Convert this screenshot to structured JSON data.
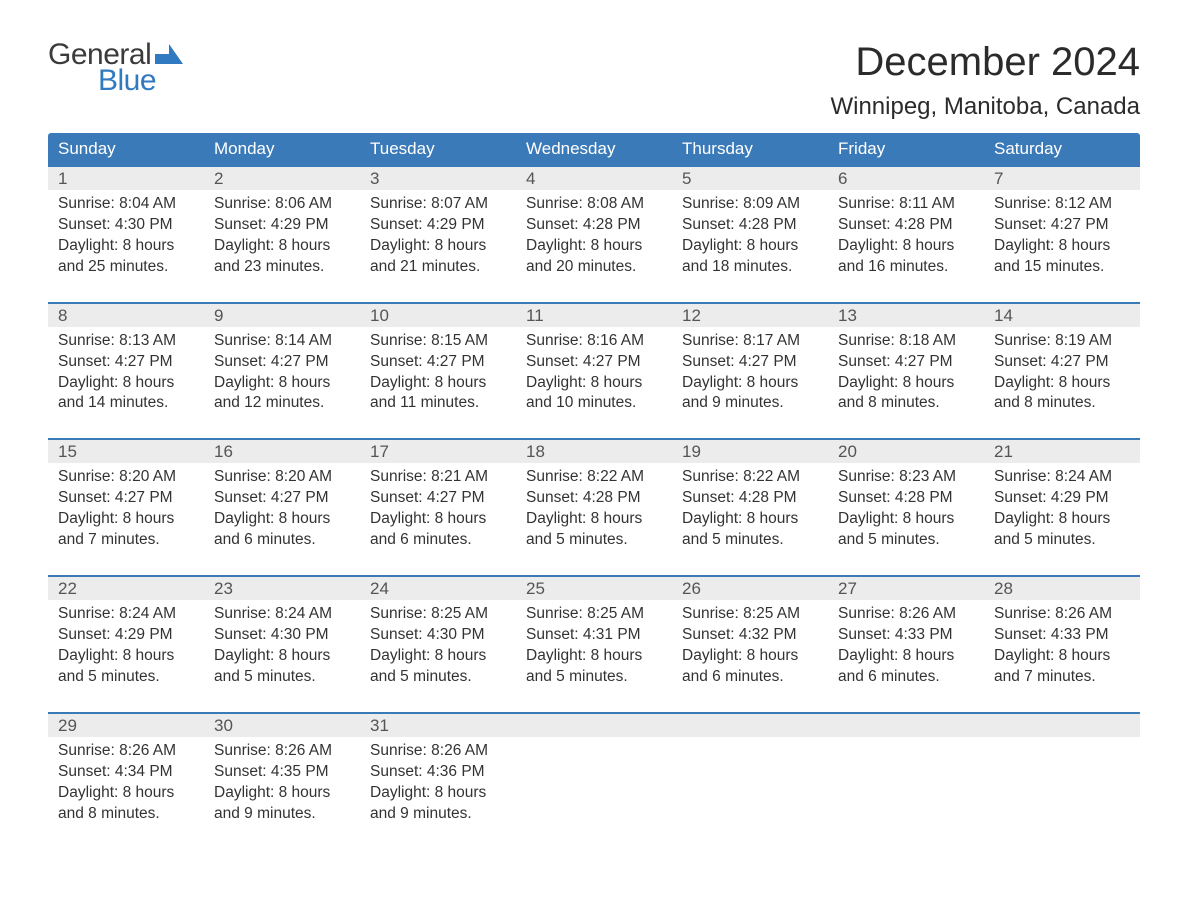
{
  "brand": {
    "text_general": "General",
    "text_blue": "Blue",
    "general_color": "#3b3b3b",
    "blue_color": "#2f7ac0",
    "flag_color": "#2f7ac0"
  },
  "title": "December 2024",
  "subtitle": "Winnipeg, Manitoba, Canada",
  "colors": {
    "header_bg": "#3b7ab8",
    "header_text": "#ffffff",
    "daynum_bg": "#ececec",
    "daynum_text": "#555555",
    "body_text": "#333333",
    "week_border": "#3b7ab8",
    "page_bg": "#ffffff"
  },
  "typography": {
    "title_fontsize": 40,
    "subtitle_fontsize": 24,
    "dow_fontsize": 17,
    "daynum_fontsize": 17,
    "body_fontsize": 15.5,
    "logo_fontsize": 30
  },
  "days_of_week": [
    "Sunday",
    "Monday",
    "Tuesday",
    "Wednesday",
    "Thursday",
    "Friday",
    "Saturday"
  ],
  "weeks": [
    [
      {
        "num": "1",
        "sunrise": "8:04 AM",
        "sunset": "4:30 PM",
        "daylight": "8 hours and 25 minutes."
      },
      {
        "num": "2",
        "sunrise": "8:06 AM",
        "sunset": "4:29 PM",
        "daylight": "8 hours and 23 minutes."
      },
      {
        "num": "3",
        "sunrise": "8:07 AM",
        "sunset": "4:29 PM",
        "daylight": "8 hours and 21 minutes."
      },
      {
        "num": "4",
        "sunrise": "8:08 AM",
        "sunset": "4:28 PM",
        "daylight": "8 hours and 20 minutes."
      },
      {
        "num": "5",
        "sunrise": "8:09 AM",
        "sunset": "4:28 PM",
        "daylight": "8 hours and 18 minutes."
      },
      {
        "num": "6",
        "sunrise": "8:11 AM",
        "sunset": "4:28 PM",
        "daylight": "8 hours and 16 minutes."
      },
      {
        "num": "7",
        "sunrise": "8:12 AM",
        "sunset": "4:27 PM",
        "daylight": "8 hours and 15 minutes."
      }
    ],
    [
      {
        "num": "8",
        "sunrise": "8:13 AM",
        "sunset": "4:27 PM",
        "daylight": "8 hours and 14 minutes."
      },
      {
        "num": "9",
        "sunrise": "8:14 AM",
        "sunset": "4:27 PM",
        "daylight": "8 hours and 12 minutes."
      },
      {
        "num": "10",
        "sunrise": "8:15 AM",
        "sunset": "4:27 PM",
        "daylight": "8 hours and 11 minutes."
      },
      {
        "num": "11",
        "sunrise": "8:16 AM",
        "sunset": "4:27 PM",
        "daylight": "8 hours and 10 minutes."
      },
      {
        "num": "12",
        "sunrise": "8:17 AM",
        "sunset": "4:27 PM",
        "daylight": "8 hours and 9 minutes."
      },
      {
        "num": "13",
        "sunrise": "8:18 AM",
        "sunset": "4:27 PM",
        "daylight": "8 hours and 8 minutes."
      },
      {
        "num": "14",
        "sunrise": "8:19 AM",
        "sunset": "4:27 PM",
        "daylight": "8 hours and 8 minutes."
      }
    ],
    [
      {
        "num": "15",
        "sunrise": "8:20 AM",
        "sunset": "4:27 PM",
        "daylight": "8 hours and 7 minutes."
      },
      {
        "num": "16",
        "sunrise": "8:20 AM",
        "sunset": "4:27 PM",
        "daylight": "8 hours and 6 minutes."
      },
      {
        "num": "17",
        "sunrise": "8:21 AM",
        "sunset": "4:27 PM",
        "daylight": "8 hours and 6 minutes."
      },
      {
        "num": "18",
        "sunrise": "8:22 AM",
        "sunset": "4:28 PM",
        "daylight": "8 hours and 5 minutes."
      },
      {
        "num": "19",
        "sunrise": "8:22 AM",
        "sunset": "4:28 PM",
        "daylight": "8 hours and 5 minutes."
      },
      {
        "num": "20",
        "sunrise": "8:23 AM",
        "sunset": "4:28 PM",
        "daylight": "8 hours and 5 minutes."
      },
      {
        "num": "21",
        "sunrise": "8:24 AM",
        "sunset": "4:29 PM",
        "daylight": "8 hours and 5 minutes."
      }
    ],
    [
      {
        "num": "22",
        "sunrise": "8:24 AM",
        "sunset": "4:29 PM",
        "daylight": "8 hours and 5 minutes."
      },
      {
        "num": "23",
        "sunrise": "8:24 AM",
        "sunset": "4:30 PM",
        "daylight": "8 hours and 5 minutes."
      },
      {
        "num": "24",
        "sunrise": "8:25 AM",
        "sunset": "4:30 PM",
        "daylight": "8 hours and 5 minutes."
      },
      {
        "num": "25",
        "sunrise": "8:25 AM",
        "sunset": "4:31 PM",
        "daylight": "8 hours and 5 minutes."
      },
      {
        "num": "26",
        "sunrise": "8:25 AM",
        "sunset": "4:32 PM",
        "daylight": "8 hours and 6 minutes."
      },
      {
        "num": "27",
        "sunrise": "8:26 AM",
        "sunset": "4:33 PM",
        "daylight": "8 hours and 6 minutes."
      },
      {
        "num": "28",
        "sunrise": "8:26 AM",
        "sunset": "4:33 PM",
        "daylight": "8 hours and 7 minutes."
      }
    ],
    [
      {
        "num": "29",
        "sunrise": "8:26 AM",
        "sunset": "4:34 PM",
        "daylight": "8 hours and 8 minutes."
      },
      {
        "num": "30",
        "sunrise": "8:26 AM",
        "sunset": "4:35 PM",
        "daylight": "8 hours and 9 minutes."
      },
      {
        "num": "31",
        "sunrise": "8:26 AM",
        "sunset": "4:36 PM",
        "daylight": "8 hours and 9 minutes."
      },
      null,
      null,
      null,
      null
    ]
  ],
  "labels": {
    "sunrise_prefix": "Sunrise: ",
    "sunset_prefix": "Sunset: ",
    "daylight_prefix": "Daylight: "
  }
}
